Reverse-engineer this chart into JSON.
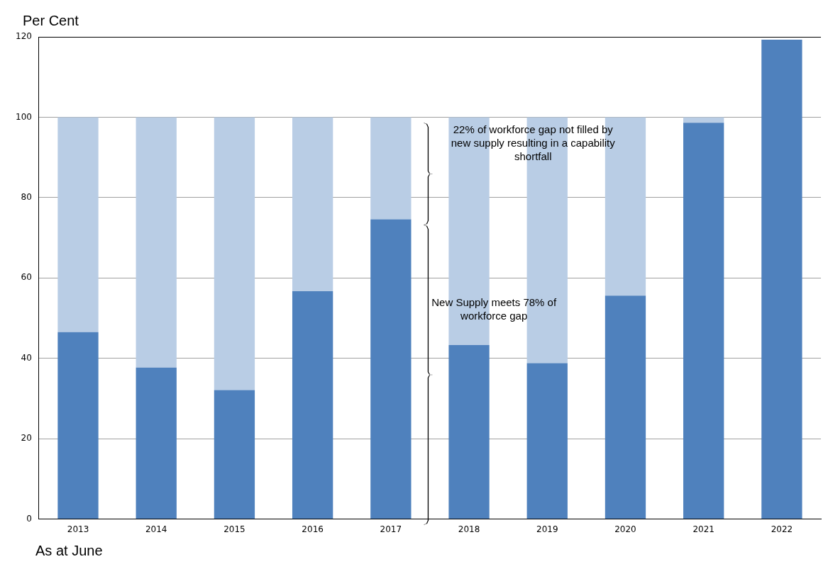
{
  "chart_data": {
    "type": "bar",
    "stacked": true,
    "ylabel": "Per Cent",
    "xlabel": "As at June",
    "categories": [
      "2013",
      "2014",
      "2015",
      "2016",
      "2017",
      "2018",
      "2019",
      "2020",
      "2021",
      "2022"
    ],
    "series": [
      {
        "color": "#4f81bd",
        "values": [
          46.5,
          37.7,
          32.1,
          56.7,
          74.6,
          43.3,
          38.8,
          55.6,
          98.6,
          119.3
        ]
      },
      {
        "color": "#b9cde5",
        "values": [
          53.5,
          62.3,
          67.9,
          43.3,
          25.4,
          56.7,
          61.2,
          44.4,
          1.4,
          null
        ]
      }
    ],
    "ylim": [
      0,
      120
    ],
    "yticks": [
      0,
      20,
      40,
      60,
      80,
      100,
      120
    ],
    "grid": "y",
    "annotations": [
      "22% of workforce gap not filled by\nnew supply resulting in a capability\nshortfall",
      "New Supply meets 78% of\nworkforce gap"
    ]
  }
}
